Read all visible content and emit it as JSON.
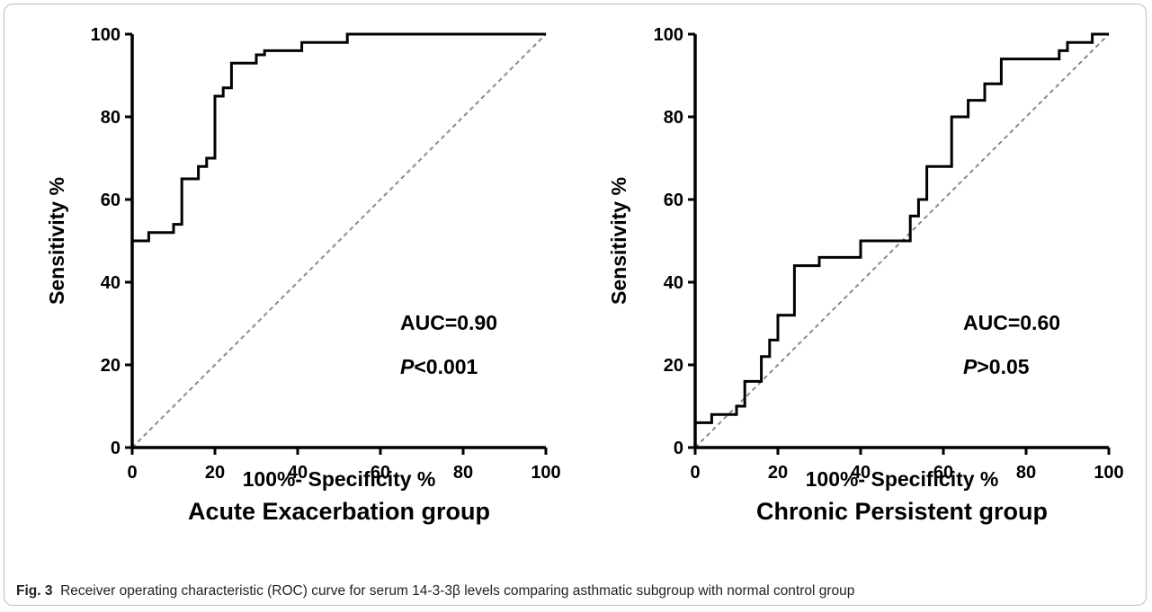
{
  "caption": {
    "label": "Fig. 3",
    "text": "Receiver operating characteristic (ROC) curve for serum 14-3-3β levels comparing asthmatic subgroup with normal control group"
  },
  "chart_data": [
    {
      "type": "line",
      "title": "Acute Exacerbation group",
      "xlabel": "100%- Specificity %",
      "ylabel": "Sensitivity %",
      "xlim": [
        0,
        100
      ],
      "ylim": [
        0,
        100
      ],
      "xticks": [
        "0",
        "20",
        "40",
        "60",
        "80",
        "100"
      ],
      "yticks": [
        "0",
        "20",
        "40",
        "60",
        "80",
        "100"
      ],
      "auc_text": "AUC=0.90",
      "p_symbol": "P",
      "p_text": "<0.001",
      "series": [
        {
          "x": [
            0,
            0,
            4,
            4,
            10,
            10,
            12,
            12,
            16,
            16,
            18,
            18,
            20,
            20,
            22,
            22,
            24,
            24,
            30,
            30,
            32,
            32,
            41,
            41,
            52,
            52,
            100
          ],
          "y": [
            0,
            50,
            50,
            52,
            52,
            54,
            54,
            65,
            65,
            68,
            68,
            70,
            70,
            85,
            85,
            87,
            87,
            93,
            93,
            95,
            95,
            96,
            96,
            98,
            98,
            100,
            100
          ]
        }
      ],
      "reference_line": {
        "x": [
          0,
          100
        ],
        "y": [
          0,
          100
        ]
      }
    },
    {
      "type": "line",
      "title": "Chronic Persistent group",
      "xlabel": "100%- Specificity %",
      "ylabel": "Sensitivity %",
      "xlim": [
        0,
        100
      ],
      "ylim": [
        0,
        100
      ],
      "xticks": [
        "0",
        "20",
        "40",
        "60",
        "80",
        "100"
      ],
      "yticks": [
        "0",
        "20",
        "40",
        "60",
        "80",
        "100"
      ],
      "auc_text": "AUC=0.60",
      "p_symbol": "P",
      "p_text": ">0.05",
      "series": [
        {
          "x": [
            0,
            0,
            4,
            4,
            10,
            10,
            12,
            12,
            16,
            16,
            18,
            18,
            20,
            20,
            24,
            24,
            30,
            30,
            40,
            40,
            52,
            52,
            54,
            54,
            56,
            56,
            62,
            62,
            66,
            66,
            70,
            70,
            74,
            74,
            88,
            88,
            90,
            90,
            96,
            96,
            100
          ],
          "y": [
            0,
            6,
            6,
            8,
            8,
            10,
            10,
            16,
            16,
            22,
            22,
            26,
            26,
            32,
            32,
            44,
            44,
            46,
            46,
            50,
            50,
            56,
            56,
            60,
            60,
            68,
            68,
            80,
            80,
            84,
            84,
            88,
            88,
            94,
            94,
            96,
            96,
            98,
            98,
            100,
            100
          ]
        }
      ],
      "reference_line": {
        "x": [
          0,
          100
        ],
        "y": [
          0,
          100
        ]
      }
    }
  ]
}
